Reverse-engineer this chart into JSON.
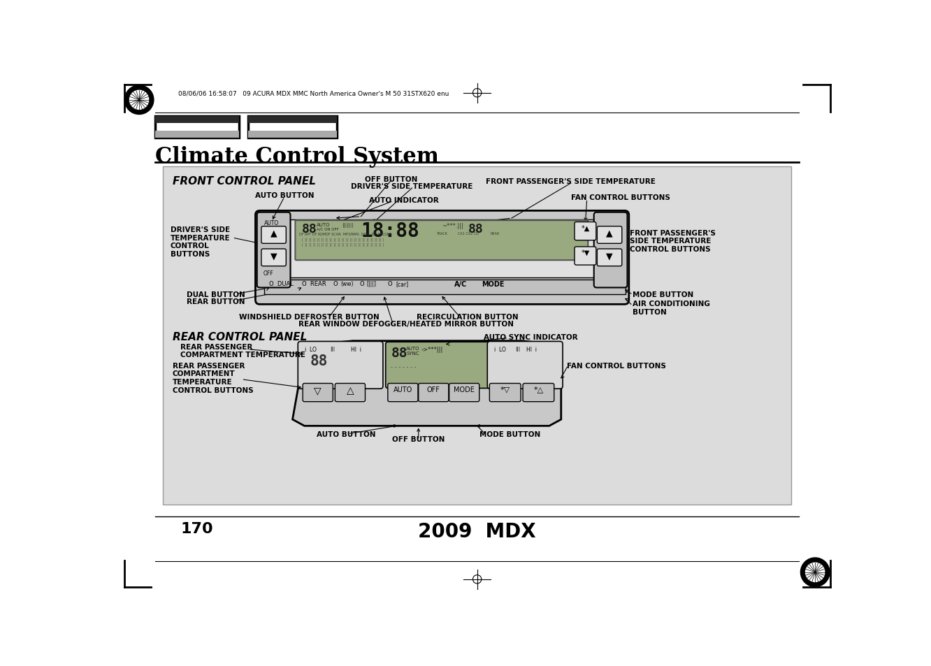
{
  "page_bg": "#ffffff",
  "diagram_bg": "#dcdcdc",
  "page_number": "170",
  "model": "2009  MDX",
  "header_text": "08/06/06 16:58:07   09 ACURA MDX MMC North America Owner's M 50 31STX620 enu",
  "title": "Climate Control System",
  "front_panel_title": "FRONT CONTROL PANEL",
  "rear_panel_title": "REAR CONTROL PANEL",
  "off_button_front": "OFF BUTTON",
  "drivers_temp": "DRIVER'S SIDE TEMPERATURE",
  "front_pass_temp": "FRONT PASSENGER'S SIDE TEMPERATURE",
  "auto_button_front": "AUTO BUTTON",
  "auto_indicator": "AUTO INDICATOR",
  "fan_control_front": "FAN CONTROL BUTTONS",
  "drivers_temp_control": "DRIVER'S SIDE\nTEMPERATURE\nCONTROL\nBUTTONS",
  "front_pass_control": "FRONT PASSENGER'S\nSIDE TEMPERATURE\nCONTROL BUTTONS",
  "dual_button": "DUAL BUTTON",
  "rear_button": "REAR BUTTON",
  "windshield_defroster": "WINDSHIELD DEFROSTER BUTTON",
  "rear_window_defogger": "REAR WINDOW DEFOGGER/HEATED MIRROR BUTTON",
  "recirculation": "RECIRCULATION BUTTON",
  "mode_button_front": "MODE BUTTON",
  "air_conditioning": "AIR CONDITIONING\nBUTTON",
  "rear_pass_temp": "REAR PASSENGER\nCOMPARTMENT TEMPERATURE",
  "auto_sync": "AUTO SYNC INDICATOR",
  "rear_pass_temp_control": "REAR PASSENGER\nCOMPARTMENT\nTEMPERATURE\nCONTROL BUTTONS",
  "fan_control_rear": "FAN CONTROL BUTTONS",
  "auto_button_rear": "AUTO BUTTON",
  "off_button_rear": "OFF BUTTON",
  "mode_button_rear": "MODE BUTTON"
}
